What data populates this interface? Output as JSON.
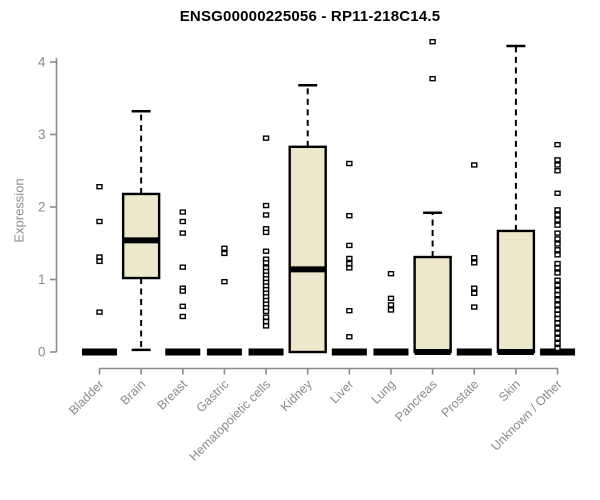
{
  "page": {
    "background": "#ffffff"
  },
  "chart_data": {
    "type": "boxplot",
    "title": "ENSG00000225056 - RP11-218C14.5",
    "ylabel": "Expression",
    "xlabel": "",
    "ylim": [
      0,
      4.3
    ],
    "yticks": [
      0,
      1,
      2,
      3,
      4
    ],
    "grid": false,
    "legend": "none",
    "colors": {
      "box_fill": "#ede7cb",
      "box_border": "#000000",
      "median": "#000000",
      "whisker": "#000000",
      "outlier_fill": "#ffffff",
      "outlier_border": "#000000",
      "axis": "#8b8b8b",
      "tick_label": "#8b8b8b",
      "title": "#000000"
    },
    "categories": [
      "Bladder",
      "Brain",
      "Breast",
      "Gastric",
      "Hematopoietic cells",
      "Kidney",
      "Liver",
      "Lung",
      "Pancreas",
      "Prostate",
      "Skin",
      "Unknown / Other"
    ],
    "boxes": [
      {
        "category": "Bladder",
        "type": "collapsed",
        "value": 0,
        "outliers": [
          2.28,
          1.8,
          1.31,
          1.25,
          0.55
        ]
      },
      {
        "category": "Brain",
        "type": "box",
        "q1": 1.02,
        "median": 1.54,
        "q3": 2.18,
        "whisker_low": 0.03,
        "whisker_high": 3.32,
        "outliers": []
      },
      {
        "category": "Breast",
        "type": "collapsed",
        "value": 0,
        "outliers": [
          1.93,
          1.8,
          1.64,
          1.17,
          0.88,
          0.84,
          0.63,
          0.49
        ]
      },
      {
        "category": "Gastric",
        "type": "collapsed",
        "value": 0,
        "outliers": [
          1.43,
          1.36,
          0.97
        ]
      },
      {
        "category": "Hematopoietic cells",
        "type": "collapsed",
        "value": 0,
        "outliers": [
          2.95,
          2.02,
          1.89,
          1.7,
          1.65,
          1.39,
          1.28,
          1.23,
          1.16,
          1.11,
          1.06,
          1.01,
          0.96,
          0.91,
          0.86,
          0.81,
          0.76,
          0.71,
          0.66,
          0.61,
          0.56,
          0.48,
          0.42,
          0.36
        ]
      },
      {
        "category": "Kidney",
        "type": "box",
        "q1": 0,
        "median": 1.14,
        "q3": 2.83,
        "whisker_low": null,
        "whisker_high": 3.68,
        "outliers": []
      },
      {
        "category": "Liver",
        "type": "collapsed",
        "value": 0,
        "outliers": [
          2.6,
          1.88,
          1.47,
          1.29,
          1.22,
          1.16,
          0.57,
          0.21
        ]
      },
      {
        "category": "Lung",
        "type": "collapsed",
        "value": 0,
        "outliers": [
          1.08,
          0.74,
          0.65,
          0.58
        ]
      },
      {
        "category": "Pancreas",
        "type": "box",
        "q1": 0,
        "median": 0,
        "q3": 1.31,
        "whisker_low": null,
        "whisker_high": 1.92,
        "outliers": [
          4.28,
          3.77
        ]
      },
      {
        "category": "Prostate",
        "type": "collapsed",
        "value": 0,
        "outliers": [
          2.58,
          1.3,
          1.23,
          0.88,
          0.81,
          0.62
        ]
      },
      {
        "category": "Skin",
        "type": "box",
        "q1": 0,
        "median": 0,
        "q3": 1.67,
        "whisker_low": null,
        "whisker_high": 4.22,
        "outliers": []
      },
      {
        "category": "Unknown / Other",
        "type": "collapsed",
        "value": 0,
        "outliers": [
          2.86,
          2.65,
          2.58,
          2.5,
          2.19,
          1.96,
          1.89,
          1.82,
          1.75,
          1.64,
          1.56,
          1.49,
          1.41,
          1.34,
          1.22,
          1.16,
          1.09,
          0.99,
          0.92,
          0.85,
          0.79,
          0.72,
          0.65,
          0.58,
          0.52,
          0.46,
          0.4,
          0.33,
          0.26,
          0.19,
          0.12,
          0.05
        ]
      }
    ]
  }
}
